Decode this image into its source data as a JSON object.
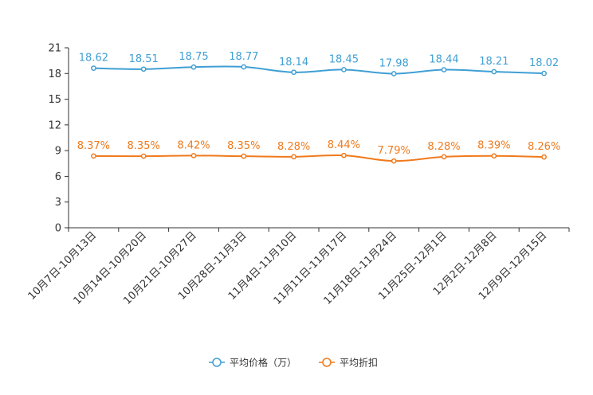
{
  "chart_data": {
    "type": "line",
    "title": "",
    "xlabel": "",
    "ylabel": "",
    "ylim": [
      0,
      21
    ],
    "yticks": [
      0,
      3,
      6,
      9,
      12,
      15,
      18,
      21
    ],
    "grid": false,
    "legend_position": "bottom",
    "categories": [
      "10月7日-10月13日",
      "10月14日-10月20日",
      "10月21日-10月27日",
      "10月28日-11月3日",
      "11月4日-11月10日",
      "11月11日-11月17日",
      "11月18日-11月24日",
      "11月25日-12月1日",
      "12月2日-12月8日",
      "12月9日-12月15日"
    ],
    "series": [
      {
        "name": "平均价格（万）",
        "color": "#3f9fd4",
        "values": [
          18.62,
          18.51,
          18.75,
          18.77,
          18.14,
          18.45,
          17.98,
          18.44,
          18.21,
          18.02
        ],
        "labels": [
          "18.62",
          "18.51",
          "18.75",
          "18.77",
          "18.14",
          "18.45",
          "17.98",
          "18.44",
          "18.21",
          "18.02"
        ]
      },
      {
        "name": "平均折扣",
        "color": "#f07a1c",
        "values": [
          8.37,
          8.35,
          8.42,
          8.35,
          8.28,
          8.44,
          7.79,
          8.28,
          8.39,
          8.26
        ],
        "labels": [
          "8.37%",
          "8.35%",
          "8.42%",
          "8.35%",
          "8.28%",
          "8.44%",
          "7.79%",
          "8.28%",
          "8.39%",
          "8.26%"
        ]
      }
    ]
  }
}
